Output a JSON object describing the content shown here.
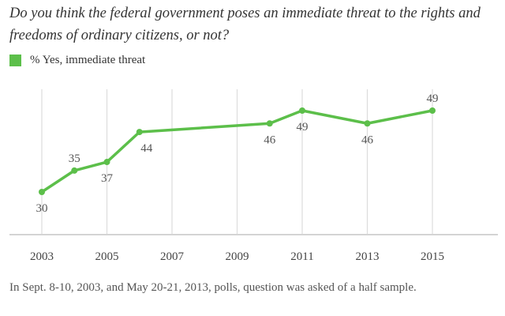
{
  "chart_data": {
    "type": "line",
    "title": "Do you think the federal government poses an immediate threat to the rights and freedoms of ordinary citizens, or not?",
    "xlabel": "",
    "ylabel": "",
    "x": [
      2003,
      2004,
      2005,
      2006,
      2010,
      2011,
      2013,
      2015
    ],
    "series": [
      {
        "name": "% Yes, immediate threat",
        "color": "#5cbf4a",
        "values": [
          30,
          35,
          37,
          44,
          46,
          49,
          46,
          49
        ],
        "label_position": [
          "below",
          "above",
          "below",
          "below",
          "below",
          "below",
          "below",
          "above"
        ]
      }
    ],
    "x_ticks": [
      2003,
      2005,
      2007,
      2009,
      2011,
      2013,
      2015
    ],
    "x_tick_labels": [
      "2003",
      "2005",
      "2007",
      "2009",
      "2011",
      "2013",
      "2015"
    ],
    "xlim": [
      2000.9,
      2016.9
    ],
    "ylim": [
      20,
      54
    ],
    "grid": "vertical",
    "legend": "top-left",
    "note": "In Sept. 8-10, 2003, and May 20-21, 2013, polls, question was asked of a half sample."
  },
  "colors": {
    "series": "#5cbf4a",
    "grid": "#dcdcdc",
    "axis": "#d4d4d4"
  }
}
